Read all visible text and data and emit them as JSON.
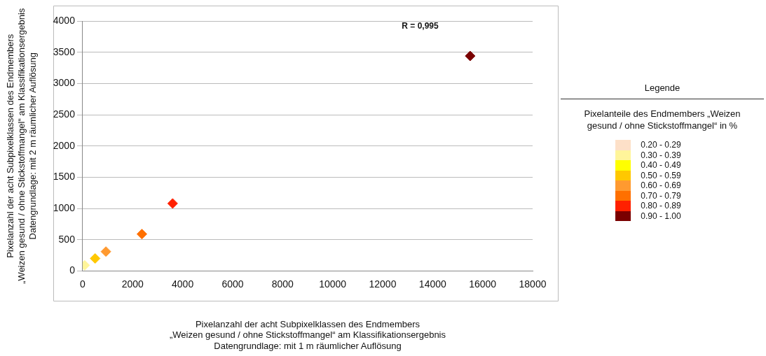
{
  "chart_data": {
    "type": "scatter",
    "xlabel": "Pixelanzahl der acht Subpixelklassen des Endmembers\n„Weizen gesund / ohne Stickstoffmangel“ am Klassifikationsergebnis\nDatengrundlage: mit 1 m räumlicher Auflösung",
    "ylabel": "Pixelanzahl der acht Subpixelklassen des Endmembers\n„Weizen gesund / ohne Stickstoffmangel“ am Klassifikationsergebnis\nDatengrundlage: mit 2 m räumlicher Auflösung",
    "legend_title": "Pixelanteile des Endmembers „Weizen\ngesund / ohne Stickstoffmangel“  in %",
    "annotations": [
      "Legende",
      "R = 0,995"
    ],
    "xlim": [
      0,
      18000
    ],
    "xticks": [
      0,
      2000,
      4000,
      6000,
      8000,
      10000,
      12000,
      14000,
      16000,
      18000
    ],
    "ylim": [
      0,
      4000
    ],
    "yticks": [
      0,
      500,
      1000,
      1500,
      2000,
      2500,
      3000,
      3500,
      4000
    ],
    "grid": "y",
    "legend": "right",
    "marker": "diamond",
    "series": [
      {
        "name": "0.20 - 0.29",
        "color": "#fde0c8"
      },
      {
        "name": "0.30 - 0.39",
        "color": "#fff59a",
        "x": [
          80
        ],
        "values": [
          90
        ]
      },
      {
        "name": "0.40 - 0.49",
        "color": "#ffff00"
      },
      {
        "name": "0.50 - 0.59",
        "color": "#ffc800",
        "x": [
          500
        ],
        "values": [
          200
        ]
      },
      {
        "name": "0.60 - 0.69",
        "color": "#ff9a30",
        "x": [
          930
        ],
        "values": [
          310
        ]
      },
      {
        "name": "0.70 - 0.79",
        "color": "#ff7000",
        "x": [
          2370
        ],
        "values": [
          590
        ]
      },
      {
        "name": "0.80 - 0.89",
        "color": "#ff2000",
        "x": [
          3600
        ],
        "values": [
          1080
        ]
      },
      {
        "name": "0.90 - 1.00",
        "color": "#7a0000",
        "x": [
          15500
        ],
        "values": [
          3440
        ]
      }
    ]
  }
}
